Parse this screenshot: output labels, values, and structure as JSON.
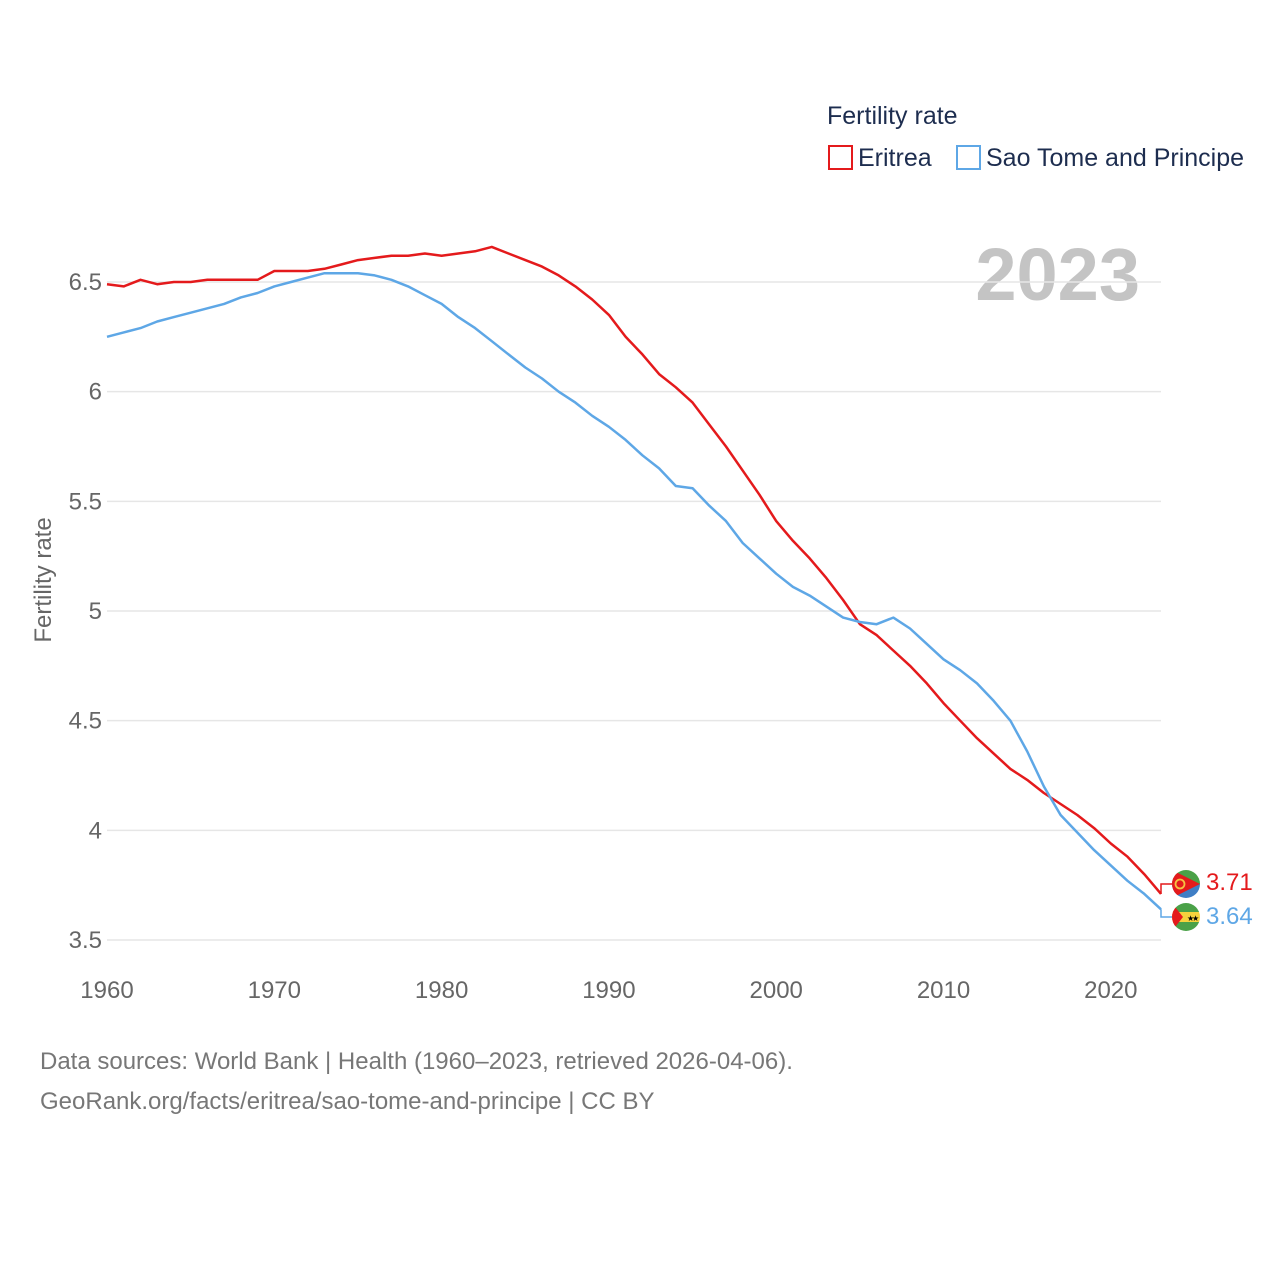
{
  "chart_data": {
    "type": "line",
    "title": "Fertility rate",
    "ylabel": "Fertility rate",
    "xlabel": "",
    "year_display": "2023",
    "xlim": [
      1960,
      2023
    ],
    "ylim": [
      3.4,
      6.9
    ],
    "x_ticks": [
      "1960",
      "1970",
      "1980",
      "1990",
      "2000",
      "2010",
      "2020"
    ],
    "y_ticks": [
      "3.5",
      "4",
      "4.5",
      "5",
      "5.5",
      "6",
      "6.5"
    ],
    "grid": true,
    "legend_position": "top-right",
    "x": [
      1960,
      1961,
      1962,
      1963,
      1964,
      1965,
      1966,
      1967,
      1968,
      1969,
      1970,
      1971,
      1972,
      1973,
      1974,
      1975,
      1976,
      1977,
      1978,
      1979,
      1980,
      1981,
      1982,
      1983,
      1984,
      1985,
      1986,
      1987,
      1988,
      1989,
      1990,
      1991,
      1992,
      1993,
      1994,
      1995,
      1996,
      1997,
      1998,
      1999,
      2000,
      2001,
      2002,
      2003,
      2004,
      2005,
      2006,
      2007,
      2008,
      2009,
      2010,
      2011,
      2012,
      2013,
      2014,
      2015,
      2016,
      2017,
      2018,
      2019,
      2020,
      2021,
      2022,
      2023
    ],
    "series": [
      {
        "name": "Eritrea",
        "color": "#e41a1c",
        "end_label": "3.71",
        "values": [
          6.49,
          6.48,
          6.51,
          6.49,
          6.5,
          6.5,
          6.51,
          6.51,
          6.51,
          6.51,
          6.55,
          6.55,
          6.55,
          6.56,
          6.58,
          6.6,
          6.61,
          6.62,
          6.62,
          6.63,
          6.62,
          6.63,
          6.64,
          6.66,
          6.63,
          6.6,
          6.57,
          6.53,
          6.48,
          6.42,
          6.35,
          6.25,
          6.17,
          6.08,
          6.02,
          5.95,
          5.85,
          5.75,
          5.64,
          5.53,
          5.41,
          5.32,
          5.24,
          5.15,
          5.05,
          4.94,
          4.89,
          4.82,
          4.75,
          4.67,
          4.58,
          4.5,
          4.42,
          4.35,
          4.28,
          4.23,
          4.17,
          4.12,
          4.07,
          4.01,
          3.94,
          3.88,
          3.8,
          3.71
        ]
      },
      {
        "name": "Sao Tome and Principe",
        "color": "#5ea7e6",
        "end_label": "3.64",
        "values": [
          6.25,
          6.27,
          6.29,
          6.32,
          6.34,
          6.36,
          6.38,
          6.4,
          6.43,
          6.45,
          6.48,
          6.5,
          6.52,
          6.54,
          6.54,
          6.54,
          6.53,
          6.51,
          6.48,
          6.44,
          6.4,
          6.34,
          6.29,
          6.23,
          6.17,
          6.11,
          6.06,
          6.0,
          5.95,
          5.89,
          5.84,
          5.78,
          5.71,
          5.65,
          5.57,
          5.56,
          5.48,
          5.41,
          5.31,
          5.24,
          5.17,
          5.11,
          5.07,
          5.02,
          4.97,
          4.95,
          4.94,
          4.97,
          4.92,
          4.85,
          4.78,
          4.73,
          4.67,
          4.59,
          4.5,
          4.36,
          4.2,
          4.07,
          3.99,
          3.91,
          3.84,
          3.77,
          3.71,
          3.64
        ]
      }
    ]
  },
  "legend": {
    "title": "Fertility rate",
    "items": [
      {
        "label": "Eritrea",
        "color": "#e41a1c"
      },
      {
        "label": "Sao Tome and Principe",
        "color": "#5ea7e6"
      }
    ]
  },
  "footer": {
    "line1": "Data sources: World Bank | Health (1960–2023, retrieved 2026-04-06).",
    "line2": "GeoRank.org/facts/eritrea/sao-tome-and-principe | CC BY"
  },
  "flags": {
    "eritrea": "eritrea-flag-icon",
    "sao_tome": "sao-tome-flag-icon"
  }
}
